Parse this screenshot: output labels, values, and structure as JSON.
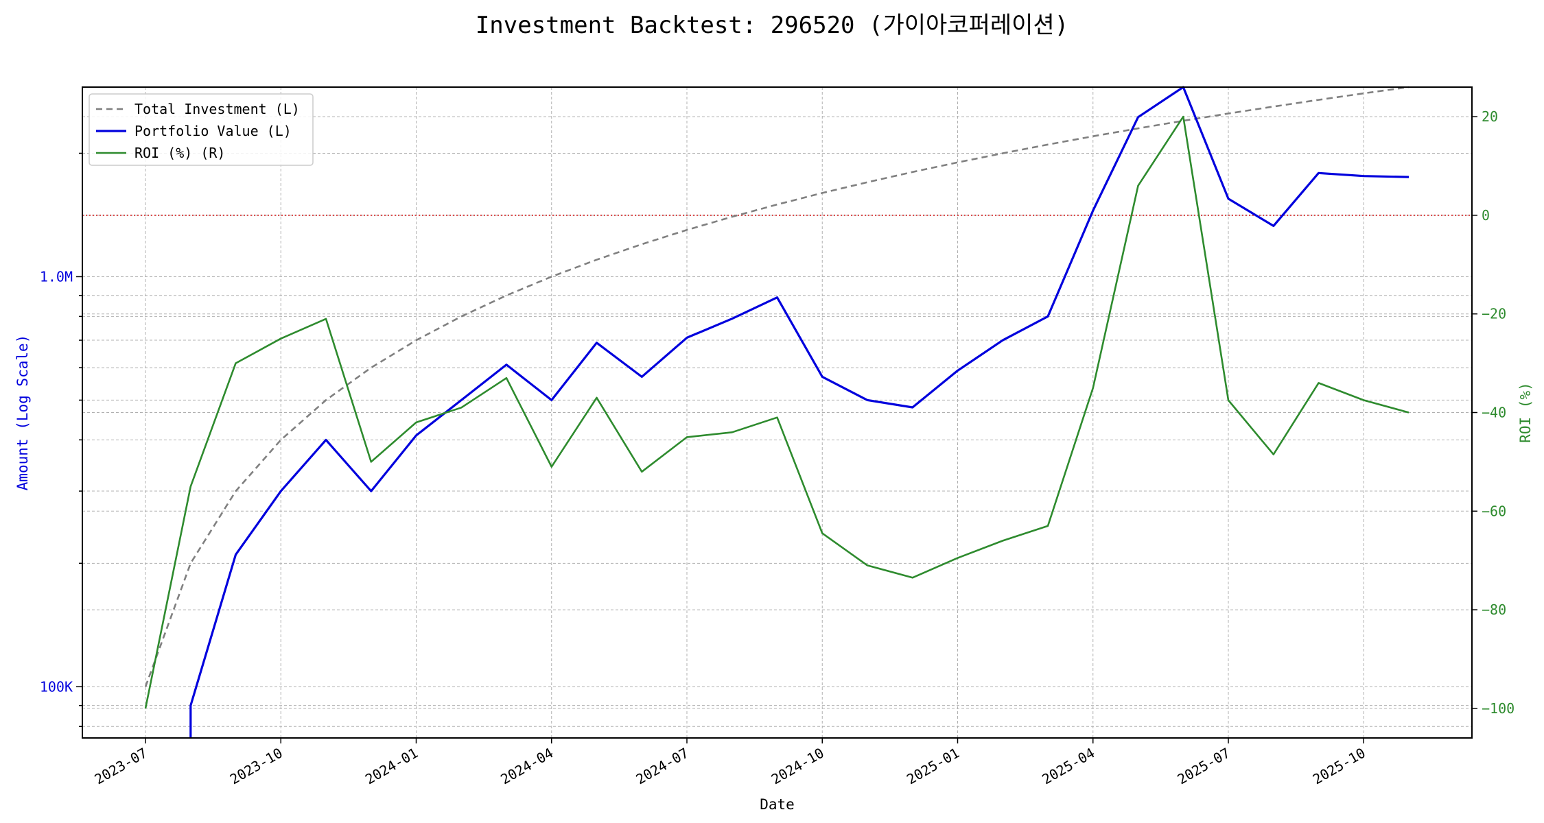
{
  "chart_data": {
    "type": "line",
    "title": "Investment Backtest: 296520 (가이아코퍼레이션)",
    "xlabel": "Date",
    "ylabel_left": "Amount (Log Scale)",
    "ylabel_right": "ROI (%)",
    "x_ticks": [
      "2023-07",
      "2023-10",
      "2024-01",
      "2024-04",
      "2024-07",
      "2024-10",
      "2025-01",
      "2025-04",
      "2025-07",
      "2025-10"
    ],
    "y_left_scale": "log",
    "y_left_ticks": [
      {
        "value": 100000,
        "label": "100K"
      },
      {
        "value": 1000000,
        "label": "1.0M"
      }
    ],
    "y_left_range": [
      75000,
      2900000
    ],
    "y_right_ticks": [
      -100,
      -80,
      -60,
      -40,
      -20,
      0,
      20
    ],
    "y_right_range": [
      -106,
      26
    ],
    "reference_line": {
      "axis": "right",
      "value": 0,
      "style": "dotted",
      "color": "#cc0000"
    },
    "grid": true,
    "legend_position": "top-left",
    "dates": [
      "2023-07",
      "2023-08",
      "2023-09",
      "2023-10",
      "2023-11",
      "2023-12",
      "2024-01",
      "2024-02",
      "2024-03",
      "2024-04",
      "2024-05",
      "2024-06",
      "2024-07",
      "2024-08",
      "2024-09",
      "2024-10",
      "2024-11",
      "2024-12",
      "2025-01",
      "2025-02",
      "2025-03",
      "2025-04",
      "2025-05",
      "2025-06",
      "2025-07",
      "2025-08",
      "2025-09",
      "2025-10",
      "2025-11"
    ],
    "series": [
      {
        "name": "Total Investment (L)",
        "axis": "left",
        "color": "#808080",
        "style": "dashed",
        "values": [
          100000,
          200000,
          300000,
          400000,
          500000,
          600000,
          700000,
          800000,
          900000,
          1000000,
          1100000,
          1200000,
          1300000,
          1400000,
          1500000,
          1600000,
          1700000,
          1800000,
          1900000,
          2000000,
          2100000,
          2200000,
          2300000,
          2400000,
          2500000,
          2600000,
          2700000,
          2800000,
          2900000
        ]
      },
      {
        "name": "Portfolio Value (L)",
        "axis": "left",
        "color": "#0000dd",
        "style": "solid",
        "values": [
          null,
          90000,
          210000,
          300000,
          400000,
          300000,
          410000,
          500000,
          610000,
          500000,
          690000,
          570000,
          710000,
          790000,
          890000,
          570000,
          500000,
          480000,
          590000,
          700000,
          800000,
          1450000,
          2450000,
          2900000,
          1550000,
          1330000,
          1790000,
          1760000,
          1750000
        ],
        "start_value": 75000
      },
      {
        "name": "ROI (%) (R)",
        "axis": "right",
        "color": "#2e8b2e",
        "style": "solid",
        "values": [
          -100,
          -55,
          -30,
          -25,
          -21,
          -50,
          -42,
          -39,
          -33,
          -51,
          -37,
          -52,
          -45,
          -44,
          -41,
          -64.5,
          -71,
          -73.5,
          -69.5,
          -66,
          -63,
          -35,
          6,
          20,
          -37.5,
          -48.5,
          -34,
          -37.5,
          -40
        ]
      }
    ]
  }
}
